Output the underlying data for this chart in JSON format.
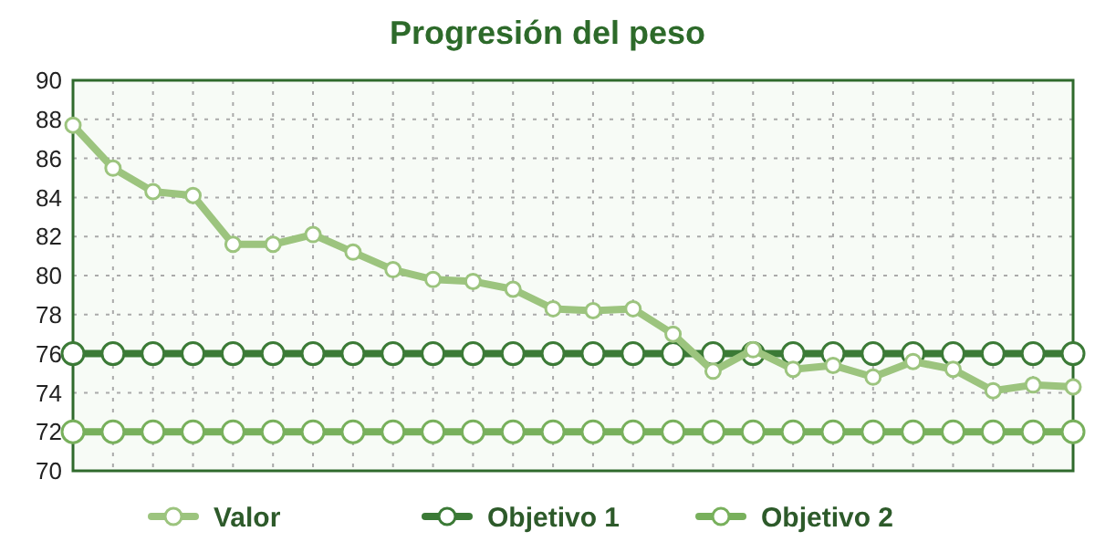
{
  "chart_data": {
    "type": "line",
    "title": "Progresión del peso",
    "categories": [
      null,
      null,
      null,
      null,
      null,
      null,
      null,
      null,
      null,
      null,
      null,
      null,
      null,
      null,
      null,
      null,
      null,
      null,
      null,
      null,
      null,
      null,
      null,
      null,
      null,
      null
    ],
    "series": [
      {
        "name": "Valor",
        "color": "#9cc47e",
        "values": [
          87.7,
          85.5,
          84.3,
          84.1,
          81.6,
          81.6,
          82.1,
          81.2,
          80.3,
          79.8,
          79.7,
          79.3,
          78.3,
          78.2,
          78.3,
          77.0,
          75.1,
          76.2,
          75.2,
          75.4,
          74.8,
          75.6,
          75.2,
          74.1,
          74.4,
          74.3
        ]
      },
      {
        "name": "Objetivo 1",
        "color": "#3b7a36",
        "values": [
          76,
          76,
          76,
          76,
          76,
          76,
          76,
          76,
          76,
          76,
          76,
          76,
          76,
          76,
          76,
          76,
          76,
          76,
          76,
          76,
          76,
          76,
          76,
          76,
          76,
          76
        ]
      },
      {
        "name": "Objetivo 2",
        "color": "#78b05c",
        "values": [
          72,
          72,
          72,
          72,
          72,
          72,
          72,
          72,
          72,
          72,
          72,
          72,
          72,
          72,
          72,
          72,
          72,
          72,
          72,
          72,
          72,
          72,
          72,
          72,
          72,
          72
        ]
      }
    ],
    "ylim": [
      70,
      90
    ],
    "yticks": [
      70,
      72,
      74,
      76,
      78,
      80,
      82,
      84,
      86,
      88,
      90
    ],
    "grid": true,
    "legend": "bottom",
    "marker": "circle",
    "line_style": "solid"
  }
}
